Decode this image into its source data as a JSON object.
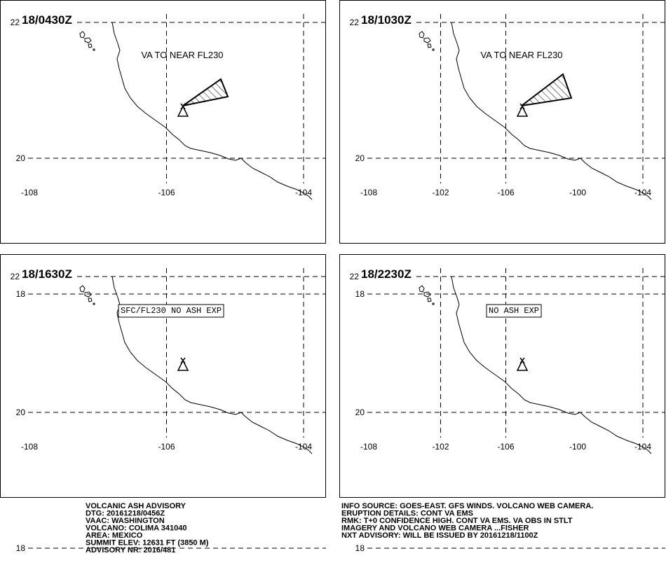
{
  "map": {
    "lon_ticks": [
      -108,
      -106,
      -104,
      -102,
      -100
    ],
    "lat_ticks": [
      22,
      20,
      18
    ]
  },
  "panels": [
    {
      "time": "18/0430Z",
      "annotation": "VA TO NEAR FL230",
      "annotation_boxed": false
    },
    {
      "time": "18/1030Z",
      "annotation": "VA TO NEAR FL230",
      "annotation_boxed": false
    },
    {
      "time": "18/1630Z",
      "annotation": "SFC/FL230 NO ASH EXP",
      "annotation_boxed": true
    },
    {
      "time": "18/2230Z",
      "annotation": "NO ASH EXP",
      "annotation_boxed": true
    }
  ],
  "footer": {
    "left": [
      "VOLCANIC ASH ADVISORY",
      "DTG: 20161218/0456Z",
      "VAAC: WASHINGTON",
      "VOLCANO: COLIMA 341040",
      "AREA: MEXICO",
      "SUMMIT ELEV: 12631 FT (3850 M)",
      "ADVISORY NR: 2016/481"
    ],
    "right": [
      "INFO SOURCE: GOES-EAST. GFS WINDS. VOLCANO WEB CAMERA.",
      "ERUPTION DETAILS: CONT VA EMS",
      "RMK: T+0 CONFIDENCE HIGH. CONT VA EMS. VA OBS IN STLT",
      "IMAGERY AND VOLCANO WEB CAMERA ...FISHER",
      "NXT ADVISORY: WILL BE ISSUED BY 20161218/1100Z"
    ]
  }
}
